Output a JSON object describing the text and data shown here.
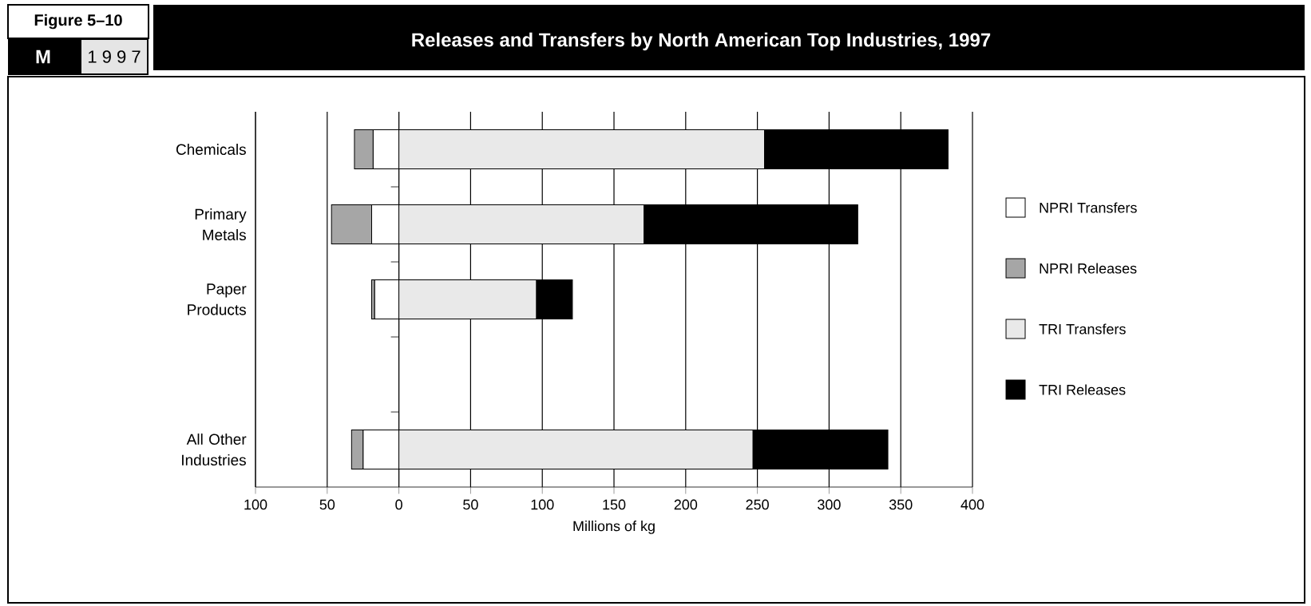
{
  "chart_data": {
    "type": "bar",
    "orientation": "horizontal",
    "stacked": true,
    "title": "Releases and Transfers by North American Top Industries, 1997",
    "annotations": [
      "Figure 5–10",
      "M",
      "1 9 9 7"
    ],
    "xlabel": "Millions of kg",
    "categories": [
      "Chemicals",
      "Primary Metals",
      "Paper Products",
      null,
      "All Other Industries"
    ],
    "series": [
      {
        "name": "NPRI Transfers",
        "color": "#ffffff",
        "values": [
          -18,
          -19,
          -17,
          null,
          -25
        ]
      },
      {
        "name": "NPRI Releases",
        "color": "#a6a6a6",
        "values": [
          -13,
          -28,
          -2,
          null,
          -8
        ]
      },
      {
        "name": "TRI Transfers",
        "color": "#e9e9e9",
        "values": [
          255,
          171,
          96,
          null,
          247
        ]
      },
      {
        "name": "TRI Releases",
        "color": "#000000",
        "values": [
          128,
          149,
          25,
          null,
          94
        ]
      }
    ],
    "xlim": [
      -100,
      400
    ],
    "xticks": [
      {
        "value": -100,
        "label": "100"
      },
      {
        "value": -50,
        "label": "50"
      },
      0,
      50,
      100,
      150,
      200,
      250,
      300,
      350,
      400
    ],
    "grid": "x",
    "legend": "right"
  }
}
